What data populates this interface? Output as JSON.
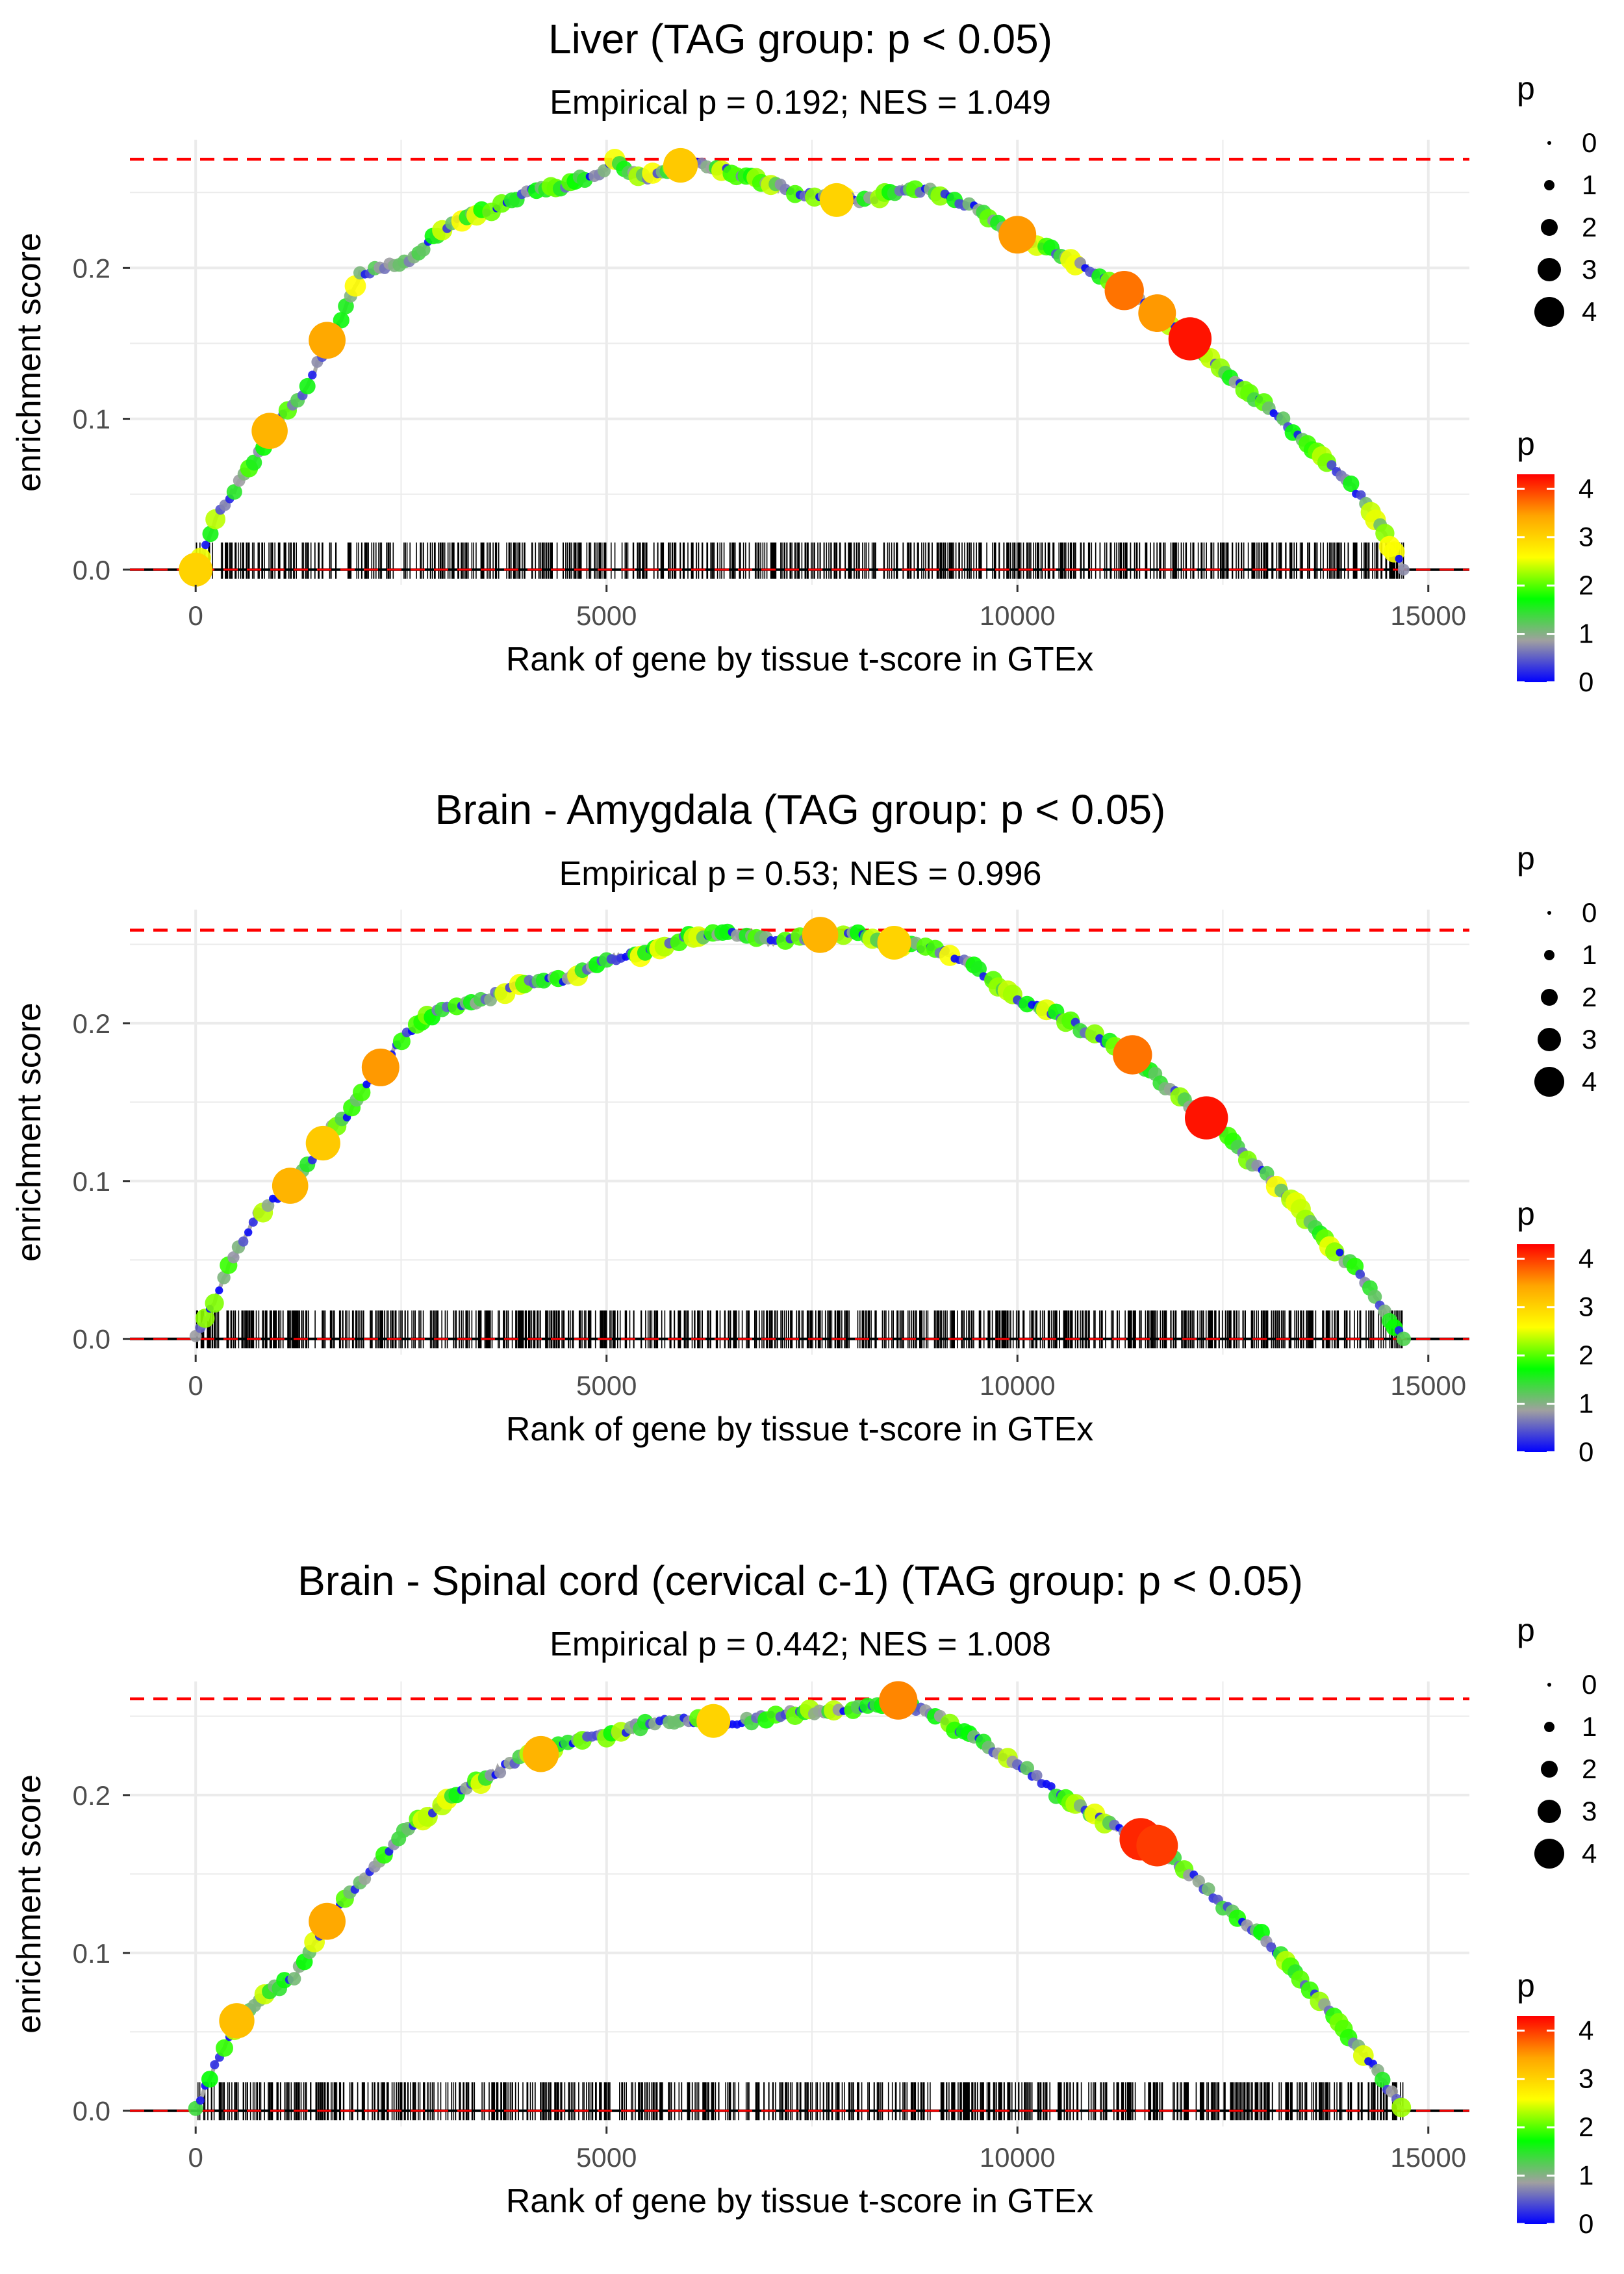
{
  "colors": {
    "ref_line": "#ff0000",
    "zero_line": "#000000",
    "grid": "#ebebeb",
    "text": "#000000",
    "tick_text": "#4d4d4d",
    "point_stroke": "#b5b5b5",
    "curve": "#a8a8a8",
    "gradient": [
      "#0000ff",
      "#a0a0a0",
      "#00ff00",
      "#ffff00",
      "#ffa500",
      "#ff0000"
    ]
  },
  "chart_data": [
    {
      "type": "line",
      "title": "Liver (TAG group: p < 0.05)",
      "subtitle": "Empirical p = 0.192; NES = 1.049",
      "xlabel": "Rank of gene by tissue t-score in GTEx",
      "ylabel": "enrichment score",
      "xlim": [
        -800,
        15500
      ],
      "ylim": [
        -0.01,
        0.285
      ],
      "xticks": [
        0,
        5000,
        10000,
        15000
      ],
      "xtick_labels": [
        "0",
        "5000",
        "10000",
        "15000"
      ],
      "yticks": [
        0.0,
        0.1,
        0.2
      ],
      "ytick_labels": [
        "0.0",
        "0.1",
        "0.2"
      ],
      "max_es": 0.272,
      "max_gene": 14700,
      "curve": [
        [
          0,
          0
        ],
        [
          150,
          0.02
        ],
        [
          300,
          0.04
        ],
        [
          500,
          0.055
        ],
        [
          800,
          0.08
        ],
        [
          1000,
          0.1
        ],
        [
          1300,
          0.115
        ],
        [
          1600,
          0.15
        ],
        [
          1800,
          0.17
        ],
        [
          2000,
          0.195
        ],
        [
          2300,
          0.2
        ],
        [
          2600,
          0.205
        ],
        [
          2800,
          0.215
        ],
        [
          3000,
          0.225
        ],
        [
          3300,
          0.235
        ],
        [
          3600,
          0.238
        ],
        [
          4000,
          0.25
        ],
        [
          4500,
          0.255
        ],
        [
          5000,
          0.265
        ],
        [
          5100,
          0.272
        ],
        [
          5300,
          0.262
        ],
        [
          5500,
          0.26
        ],
        [
          5800,
          0.265
        ],
        [
          6100,
          0.27
        ],
        [
          6400,
          0.265
        ],
        [
          7000,
          0.255
        ],
        [
          7500,
          0.248
        ],
        [
          7800,
          0.245
        ],
        [
          8200,
          0.245
        ],
        [
          8600,
          0.252
        ],
        [
          9000,
          0.25
        ],
        [
          9500,
          0.24
        ],
        [
          10000,
          0.222
        ],
        [
          10500,
          0.21
        ],
        [
          11000,
          0.195
        ],
        [
          11300,
          0.185
        ],
        [
          11700,
          0.17
        ],
        [
          12100,
          0.153
        ],
        [
          12500,
          0.13
        ],
        [
          13000,
          0.11
        ],
        [
          13500,
          0.085
        ],
        [
          14000,
          0.06
        ],
        [
          14300,
          0.04
        ],
        [
          14500,
          0.02
        ],
        [
          14700,
          0
        ]
      ],
      "highlights": [
        [
          900,
          0.092,
          3.3
        ],
        [
          1600,
          0.152,
          3.4
        ],
        [
          5900,
          0.268,
          3.1
        ],
        [
          7800,
          0.245,
          3.0
        ],
        [
          10000,
          0.222,
          3.5
        ],
        [
          11300,
          0.185,
          3.7
        ],
        [
          11700,
          0.17,
          3.5
        ],
        [
          12100,
          0.153,
          4.2
        ],
        [
          0,
          0,
          3.0
        ]
      ],
      "rug": {
        "n": 750,
        "seed": 11
      },
      "size_legend": {
        "title": "p",
        "values": [
          "0",
          "1",
          "2",
          "3",
          "4"
        ]
      },
      "color_legend": {
        "title": "p",
        "ticks": [
          "0",
          "1",
          "2",
          "3",
          "4"
        ]
      }
    },
    {
      "type": "line",
      "title": "Brain - Amygdala (TAG group: p < 0.05)",
      "subtitle": "Empirical p = 0.53; NES = 0.996",
      "xlabel": "Rank of gene by tissue t-score in GTEx",
      "ylabel": "enrichment score",
      "xlim": [
        -800,
        15500
      ],
      "ylim": [
        -0.01,
        0.272
      ],
      "xticks": [
        0,
        5000,
        10000,
        15000
      ],
      "xtick_labels": [
        "0",
        "5000",
        "10000",
        "15000"
      ],
      "yticks": [
        0.0,
        0.1,
        0.2
      ],
      "ytick_labels": [
        "0.0",
        "0.1",
        "0.2"
      ],
      "max_es": 0.259,
      "max_gene": 14700,
      "curve": [
        [
          0,
          0
        ],
        [
          200,
          0.02
        ],
        [
          400,
          0.045
        ],
        [
          700,
          0.075
        ],
        [
          1000,
          0.09
        ],
        [
          1300,
          0.105
        ],
        [
          1600,
          0.13
        ],
        [
          1900,
          0.145
        ],
        [
          2200,
          0.17
        ],
        [
          2600,
          0.195
        ],
        [
          3000,
          0.21
        ],
        [
          3500,
          0.215
        ],
        [
          4000,
          0.225
        ],
        [
          4500,
          0.228
        ],
        [
          5000,
          0.24
        ],
        [
          5500,
          0.245
        ],
        [
          6000,
          0.255
        ],
        [
          6500,
          0.258
        ],
        [
          7000,
          0.252
        ],
        [
          7500,
          0.255
        ],
        [
          8000,
          0.257
        ],
        [
          8500,
          0.25
        ],
        [
          9000,
          0.248
        ],
        [
          9500,
          0.235
        ],
        [
          10000,
          0.215
        ],
        [
          10500,
          0.205
        ],
        [
          11000,
          0.19
        ],
        [
          11400,
          0.18
        ],
        [
          11800,
          0.16
        ],
        [
          12300,
          0.14
        ],
        [
          12800,
          0.115
        ],
        [
          13300,
          0.09
        ],
        [
          13800,
          0.06
        ],
        [
          14200,
          0.04
        ],
        [
          14500,
          0.015
        ],
        [
          14700,
          0
        ]
      ],
      "highlights": [
        [
          1150,
          0.097,
          3.3
        ],
        [
          2250,
          0.172,
          3.5
        ],
        [
          1550,
          0.124,
          3.1
        ],
        [
          7600,
          0.256,
          3.3
        ],
        [
          8500,
          0.251,
          3.0
        ],
        [
          11400,
          0.18,
          3.7
        ],
        [
          12300,
          0.14,
          4.2
        ]
      ],
      "rug": {
        "n": 850,
        "seed": 23
      },
      "size_legend": {
        "title": "p",
        "values": [
          "0",
          "1",
          "2",
          "3",
          "4"
        ]
      },
      "color_legend": {
        "title": "p",
        "ticks": [
          "0",
          "1",
          "2",
          "3",
          "4"
        ]
      }
    },
    {
      "type": "line",
      "title": "Brain - Spinal cord (cervical c-1) (TAG group: p < 0.05)",
      "subtitle": "Empirical p = 0.442; NES = 1.008",
      "xlabel": "Rank of gene by tissue t-score in GTEx",
      "ylabel": "enrichment score",
      "xlim": [
        -800,
        15500
      ],
      "ylim": [
        -0.01,
        0.272
      ],
      "xticks": [
        0,
        5000,
        10000,
        15000
      ],
      "xtick_labels": [
        "0",
        "5000",
        "10000",
        "15000"
      ],
      "yticks": [
        0.0,
        0.1,
        0.2
      ],
      "ytick_labels": [
        "0.0",
        "0.1",
        "0.2"
      ],
      "max_es": 0.261,
      "max_gene": 14700,
      "curve": [
        [
          0,
          0
        ],
        [
          200,
          0.025
        ],
        [
          500,
          0.055
        ],
        [
          900,
          0.075
        ],
        [
          1200,
          0.085
        ],
        [
          1600,
          0.12
        ],
        [
          2000,
          0.145
        ],
        [
          2500,
          0.175
        ],
        [
          3000,
          0.195
        ],
        [
          3500,
          0.21
        ],
        [
          4000,
          0.225
        ],
        [
          4500,
          0.232
        ],
        [
          5000,
          0.238
        ],
        [
          5500,
          0.245
        ],
        [
          6000,
          0.248
        ],
        [
          6500,
          0.245
        ],
        [
          7000,
          0.25
        ],
        [
          7500,
          0.253
        ],
        [
          8000,
          0.255
        ],
        [
          8500,
          0.26
        ],
        [
          9000,
          0.25
        ],
        [
          9500,
          0.235
        ],
        [
          10000,
          0.22
        ],
        [
          10500,
          0.2
        ],
        [
          11000,
          0.185
        ],
        [
          11600,
          0.17
        ],
        [
          12000,
          0.155
        ],
        [
          12500,
          0.13
        ],
        [
          13000,
          0.11
        ],
        [
          13500,
          0.08
        ],
        [
          14000,
          0.05
        ],
        [
          14300,
          0.03
        ],
        [
          14500,
          0.015
        ],
        [
          14700,
          0
        ]
      ],
      "highlights": [
        [
          500,
          0.057,
          3.2
        ],
        [
          1600,
          0.12,
          3.4
        ],
        [
          4200,
          0.226,
          3.3
        ],
        [
          6300,
          0.247,
          3.0
        ],
        [
          8550,
          0.26,
          3.6
        ],
        [
          11500,
          0.172,
          4.1
        ],
        [
          11700,
          0.168,
          4.0
        ]
      ],
      "rug": {
        "n": 800,
        "seed": 37
      },
      "size_legend": {
        "title": "p",
        "values": [
          "0",
          "1",
          "2",
          "3",
          "4"
        ]
      },
      "color_legend": {
        "title": "p",
        "ticks": [
          "0",
          "1",
          "2",
          "3",
          "4"
        ]
      }
    }
  ]
}
